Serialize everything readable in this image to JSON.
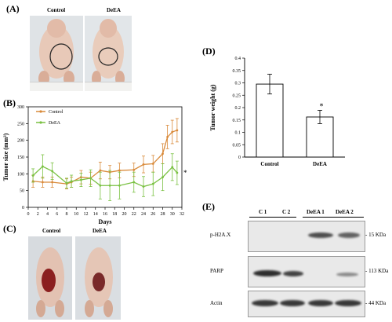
{
  "panels": {
    "a": {
      "label": "(A)",
      "groups": [
        "Control",
        "DeEA"
      ]
    },
    "b": {
      "label": "(B)",
      "ylabel": "Tumor size (mm³)",
      "xlabel": "Days",
      "significance": "*"
    },
    "c": {
      "label": "(C)",
      "groups": [
        "Control",
        "DeEA"
      ]
    },
    "d": {
      "label": "(D)",
      "ylabel": "Tumor weight (g)",
      "significance": "*"
    },
    "e": {
      "label": "(E)",
      "lanes": [
        "C 1",
        "C 2",
        "DeEA 1",
        "DeEA 2"
      ],
      "rows": [
        {
          "name": "p-H2A.X",
          "size": "15 KDa"
        },
        {
          "name": "PARP",
          "size": "113 KDa"
        },
        {
          "name": "Actin",
          "size": "44 KDa"
        }
      ]
    }
  },
  "chart_data": [
    {
      "type": "line",
      "title": "",
      "xlabel": "Days",
      "ylabel": "Tumor size (mm³)",
      "xlim": [
        0,
        32
      ],
      "ylim": [
        0,
        300
      ],
      "xticks": [
        0,
        2,
        4,
        6,
        8,
        10,
        12,
        14,
        16,
        18,
        20,
        22,
        24,
        26,
        28,
        30,
        32
      ],
      "yticks": [
        0,
        50,
        100,
        150,
        200,
        250,
        300
      ],
      "legend": "top-left",
      "series": [
        {
          "name": "Control",
          "color": "#d98a3a",
          "x": [
            1,
            3,
            5,
            8,
            9,
            11,
            13,
            15,
            17,
            19,
            22,
            24,
            26,
            28,
            29,
            30,
            31
          ],
          "y": [
            78,
            75,
            75,
            70,
            75,
            90,
            87,
            110,
            105,
            110,
            112,
            128,
            130,
            160,
            210,
            225,
            230
          ],
          "err": [
            18,
            15,
            15,
            15,
            15,
            20,
            18,
            25,
            20,
            22,
            20,
            25,
            25,
            30,
            35,
            35,
            35
          ]
        },
        {
          "name": "DeEA",
          "color": "#7ac142",
          "x": [
            1,
            3,
            5,
            8,
            9,
            11,
            13,
            15,
            17,
            19,
            22,
            24,
            26,
            28,
            30,
            31
          ],
          "y": [
            95,
            122,
            108,
            72,
            78,
            82,
            87,
            65,
            65,
            65,
            75,
            62,
            70,
            90,
            120,
            103
          ],
          "err": [
            20,
            35,
            25,
            15,
            18,
            20,
            25,
            40,
            45,
            40,
            30,
            30,
            35,
            40,
            40,
            35
          ]
        }
      ]
    },
    {
      "type": "bar",
      "title": "",
      "ylabel": "Tumor weight (g)",
      "categories": [
        "Control",
        "DeEA"
      ],
      "values": [
        0.295,
        0.162
      ],
      "errors": [
        0.04,
        0.027
      ],
      "ylim": [
        0,
        0.4
      ],
      "yticks": [
        0,
        0.05,
        0.1,
        0.15,
        0.2,
        0.25,
        0.3,
        0.35,
        0.4
      ]
    }
  ]
}
